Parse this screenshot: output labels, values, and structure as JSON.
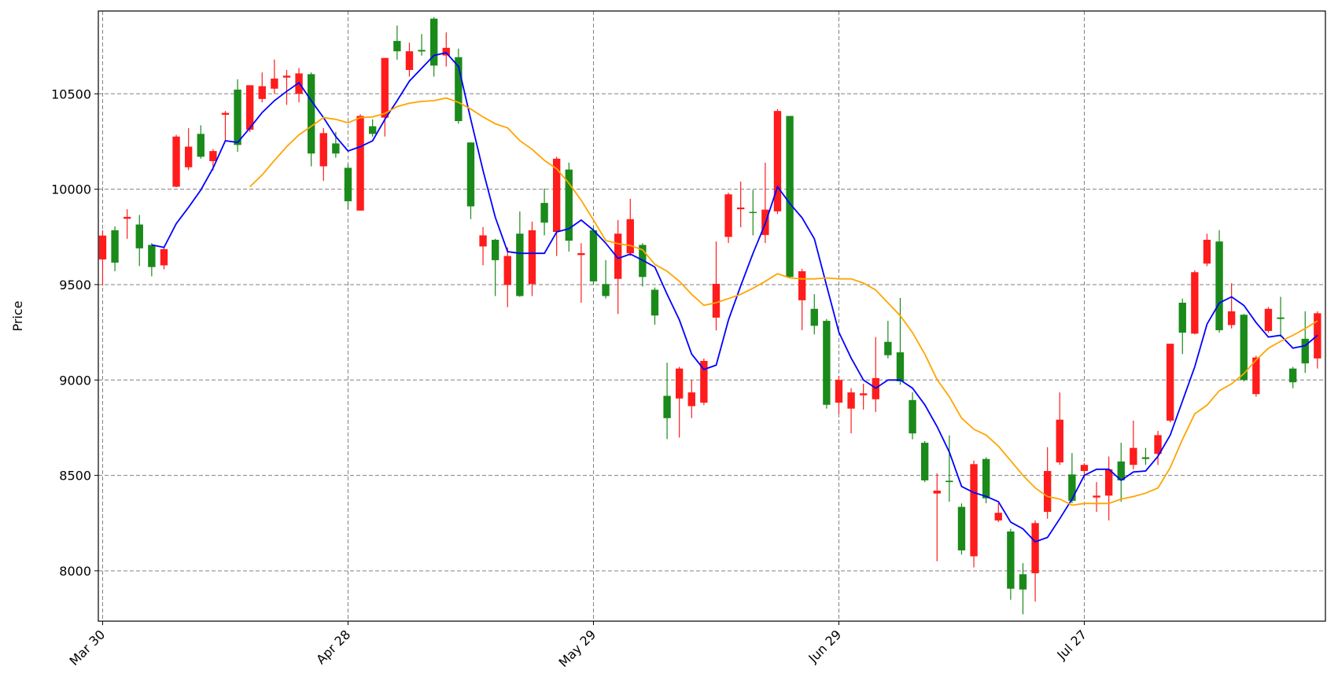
{
  "chart_data": {
    "type": "candlestick",
    "ylabel": "Price",
    "categories": [
      "Mar 30",
      null,
      null,
      null,
      null,
      null,
      null,
      null,
      null,
      null,
      null,
      null,
      null,
      null,
      null,
      null,
      null,
      null,
      null,
      null,
      "Apr 28",
      null,
      null,
      null,
      null,
      null,
      null,
      null,
      null,
      null,
      null,
      null,
      null,
      null,
      null,
      null,
      null,
      null,
      null,
      null,
      "May 29",
      null,
      null,
      null,
      null,
      null,
      null,
      null,
      null,
      null,
      null,
      null,
      null,
      null,
      null,
      null,
      null,
      null,
      null,
      null,
      "Jun 29",
      null,
      null,
      null,
      null,
      null,
      null,
      null,
      null,
      null,
      null,
      null,
      null,
      null,
      null,
      null,
      null,
      null,
      null,
      null,
      "Jul 27",
      null,
      null,
      null,
      null,
      null,
      null,
      null,
      null,
      null,
      null,
      null,
      null,
      null,
      null,
      null,
      null,
      null,
      null,
      null
    ],
    "open": [
      9757,
      9615,
      9855,
      9690,
      9592,
      9686,
      10276,
      10223,
      10170,
      10200,
      10400,
      10232,
      10545,
      10540,
      10580,
      10595,
      10607,
      10187,
      10294,
      10187,
      9937,
      10384,
      10290,
      10688,
      10723,
      10723,
      10722,
      10648,
      10741,
      10357,
      9910,
      9758,
      9628,
      9650,
      9440,
      9785,
      9825,
      10160,
      9730,
      9665,
      9517,
      9440,
      9767,
      9843,
      9540,
      9338,
      8800,
      9060,
      8935,
      9100,
      9504,
      9973,
      9904,
      9875,
      9893,
      10410,
      9540,
      9570,
      9284,
      8870,
      9000,
      8935,
      8930,
      9010,
      9130,
      8993,
      8720,
      8474,
      8420,
      8465,
      8107,
      8559,
      8380,
      8304,
      7906,
      7902,
      8250,
      8523,
      8792,
      8367,
      8555,
      8394,
      8532,
      8474,
      8644,
      8586,
      8711,
      9190,
      9248,
      9565,
      9735,
      9261,
      9360,
      9000,
      9118,
      9373,
      9320,
      8988,
      9087,
      9350
    ],
    "high": [
      9785,
      9805,
      9895,
      9865,
      9717,
      9695,
      10285,
      10320,
      10335,
      10210,
      10410,
      10576,
      10545,
      10612,
      10680,
      10625,
      10635,
      10612,
      10320,
      10300,
      10130,
      10393,
      10366,
      10688,
      10858,
      10768,
      10813,
      10902,
      10822,
      10737,
      10245,
      9802,
      9740,
      9695,
      9883,
      9830,
      10004,
      10170,
      10139,
      9717,
      9805,
      9628,
      9838,
      9950,
      9717,
      9485,
      9091,
      9069,
      9000,
      9113,
      9726,
      9982,
      10040,
      9996,
      10139,
      10420,
      10384,
      9583,
      9450,
      9320,
      9022,
      8957,
      8980,
      9225,
      9310,
      9430,
      8935,
      8680,
      8510,
      8710,
      8353,
      8577,
      8595,
      8354,
      8220,
      8040,
      8264,
      8648,
      8935,
      8617,
      8564,
      8465,
      8599,
      8671,
      8787,
      8644,
      8733,
      9190,
      9427,
      9575,
      9767,
      9785,
      9507,
      9346,
      9127,
      9382,
      9436,
      9069,
      9360,
      9360
    ],
    "low": [
      9495,
      9570,
      9740,
      9597,
      9543,
      9580,
      10010,
      10100,
      10160,
      10098,
      10254,
      10196,
      10300,
      10455,
      10500,
      10442,
      10455,
      10120,
      10044,
      10165,
      9893,
      9888,
      10276,
      10276,
      10679,
      10590,
      10700,
      10590,
      10643,
      10343,
      9843,
      9601,
      9440,
      9382,
      9436,
      9440,
      9758,
      9650,
      9673,
      9405,
      9503,
      9427,
      9346,
      9650,
      9490,
      9290,
      8690,
      8698,
      8800,
      8868,
      9260,
      9718,
      9800,
      9758,
      9718,
      9870,
      9538,
      9261,
      9239,
      8850,
      8823,
      8720,
      8845,
      8832,
      9113,
      8975,
      8689,
      8465,
      8050,
      8362,
      8085,
      8018,
      8354,
      8255,
      7848,
      7772,
      7839,
      8273,
      8555,
      8354,
      8490,
      8309,
      8264,
      8362,
      8532,
      8555,
      8555,
      8778,
      9136,
      9239,
      9597,
      9248,
      9270,
      8992,
      8912,
      9248,
      9226,
      8957,
      9037,
      9060
    ],
    "close": [
      9632,
      9785,
      9845,
      9815,
      9708,
      9601,
      10013,
      10115,
      10290,
      10147,
      10390,
      10522,
      10312,
      10473,
      10527,
      10585,
      10500,
      10603,
      10120,
      10240,
      10112,
      9888,
      10330,
      10375,
      10777,
      10625,
      10730,
      10894,
      10701,
      10692,
      10245,
      9700,
      9735,
      9498,
      9767,
      9503,
      9928,
      9776,
      10103,
      9655,
      9785,
      9503,
      9530,
      9664,
      9708,
      9473,
      8917,
      8903,
      8863,
      8881,
      9327,
      9750,
      9895,
      9881,
      9760,
      9884,
      10384,
      9418,
      9373,
      9310,
      8881,
      8850,
      8920,
      8899,
      9200,
      9145,
      8895,
      8671,
      8405,
      8472,
      8335,
      8076,
      8586,
      8264,
      8206,
      7982,
      7987,
      8309,
      8568,
      8505,
      8523,
      8384,
      8394,
      8573,
      8555,
      8595,
      8613,
      8787,
      9405,
      9243,
      9610,
      9726,
      9288,
      9342,
      8926,
      9257,
      9328,
      9060,
      9216,
      9113
    ],
    "up_color": "#1a8a1a",
    "down_color": "#ff1c1c",
    "series": [
      {
        "color": "#0000ff",
        "values": [
          null,
          null,
          null,
          null,
          9708,
          9695,
          9820,
          9905,
          9996,
          10111,
          10254,
          10245,
          10321,
          10402,
          10464,
          10513,
          10558,
          10464,
          10375,
          10276,
          10200,
          10223,
          10254,
          10366,
          10464,
          10567,
          10634,
          10701,
          10715,
          10643,
          10366,
          10098,
          9852,
          9673,
          9664,
          9664,
          9664,
          9776,
          9793,
          9838,
          9785,
          9717,
          9637,
          9660,
          9628,
          9592,
          9449,
          9315,
          9136,
          9055,
          9078,
          9315,
          9494,
          9664,
          9820,
          10013,
          9925,
          9850,
          9740,
          9494,
          9250,
          9115,
          9000,
          8957,
          9000,
          9000,
          8957,
          8870,
          8756,
          8622,
          8442,
          8410,
          8390,
          8362,
          8255,
          8220,
          8152,
          8175,
          8273,
          8376,
          8500,
          8532,
          8532,
          8474,
          8518,
          8523,
          8600,
          8711,
          8890,
          9069,
          9293,
          9404,
          9436,
          9391,
          9301,
          9225,
          9234,
          9167,
          9180,
          9234
        ]
      },
      {
        "color": "#ffa500",
        "values": [
          null,
          null,
          null,
          null,
          null,
          null,
          null,
          null,
          null,
          null,
          null,
          null,
          10013,
          10075,
          10151,
          10223,
          10285,
          10330,
          10375,
          10366,
          10348,
          10375,
          10379,
          10397,
          10433,
          10451,
          10460,
          10464,
          10478,
          10455,
          10420,
          10379,
          10343,
          10321,
          10254,
          10209,
          10151,
          10107,
          10031,
          9942,
          9838,
          9731,
          9714,
          9705,
          9682,
          9606,
          9570,
          9517,
          9449,
          9391,
          9405,
          9427,
          9449,
          9481,
          9517,
          9557,
          9535,
          9530,
          9530,
          9535,
          9530,
          9530,
          9508,
          9472,
          9404,
          9337,
          9248,
          9136,
          9002,
          8912,
          8800,
          8742,
          8711,
          8653,
          8577,
          8500,
          8434,
          8389,
          8376,
          8344,
          8353,
          8353,
          8353,
          8376,
          8389,
          8407,
          8434,
          8541,
          8689,
          8823,
          8868,
          8944,
          8980,
          9033,
          9105,
          9167,
          9203,
          9234,
          9270,
          9310
        ]
      }
    ],
    "ylim": [
      7736,
      10934
    ],
    "yticks": [
      8000,
      8500,
      9000,
      9500,
      10000,
      10500
    ],
    "grid": true
  }
}
